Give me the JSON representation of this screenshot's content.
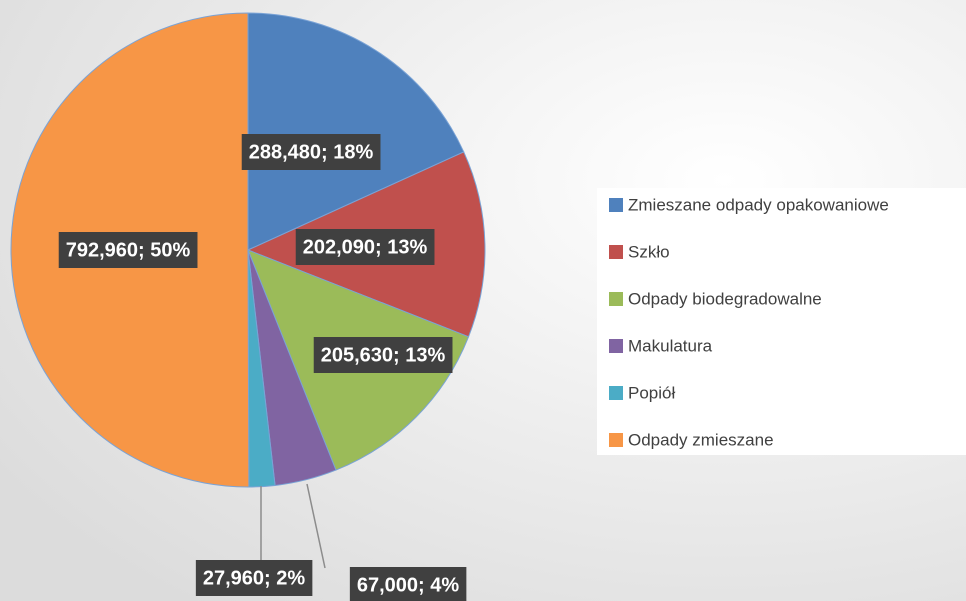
{
  "chart_data": {
    "type": "pie",
    "categories": [
      "Zmieszane odpady opakowaniowe",
      "Szkło",
      "Odpady biodegradowalne",
      "Makulatura",
      "Popiół",
      "Odpady zmieszane"
    ],
    "values": [
      288480,
      202090,
      205630,
      67000,
      27960,
      792960
    ],
    "value_labels": [
      "288,480; 18%",
      "202,090; 13%",
      "205,630; 13%",
      "67,000; 4%",
      "27,960; 2%",
      "792,960; 50%"
    ],
    "colors": [
      "#4f81bd",
      "#c0504d",
      "#9bbb59",
      "#8064a2",
      "#4bacc6",
      "#f79646"
    ],
    "legend": "right"
  }
}
